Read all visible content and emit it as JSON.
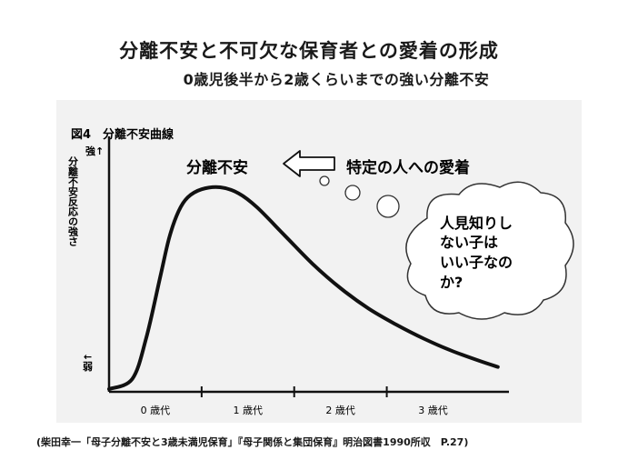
{
  "title": "分離不安と不可欠な保育者との愛着の形成",
  "subtitle": "0歳児後半から2歳くらいまでの強い分離不安",
  "caption": "(柴田幸一「母子分離不安と3歳未満児保育」『母子関係と集団保育』明治図書1990所収　P.27)",
  "chart_data": {
    "type": "line",
    "title": "図4　分離不安曲線",
    "ylabel": "分離不安反応の強さ",
    "y_top_label": "強↑",
    "y_bottom_label": "↓弱",
    "x_ticks": [
      "0 歳代",
      "1 歳代",
      "2 歳代",
      "3 歳代"
    ],
    "xlim": [
      0,
      4.3
    ],
    "ylim": [
      0,
      1
    ],
    "series": [
      {
        "x": [
          0,
          0.25,
          0.4,
          0.55,
          0.65,
          0.75,
          0.85,
          1.0,
          1.2,
          1.4,
          1.6,
          1.9,
          2.2,
          2.5,
          2.8,
          3.1,
          3.4,
          3.7,
          4.0,
          4.2
        ],
        "y": [
          0.0,
          0.05,
          0.25,
          0.55,
          0.75,
          0.88,
          0.95,
          0.99,
          1.0,
          0.97,
          0.9,
          0.76,
          0.62,
          0.5,
          0.4,
          0.32,
          0.25,
          0.19,
          0.14,
          0.11
        ]
      }
    ],
    "annotations": {
      "label_left": "分離不安",
      "label_right": "特定の人への愛着",
      "thought": [
        "人見知りし",
        "ない子は",
        "いい子なの",
        "か?"
      ]
    }
  }
}
